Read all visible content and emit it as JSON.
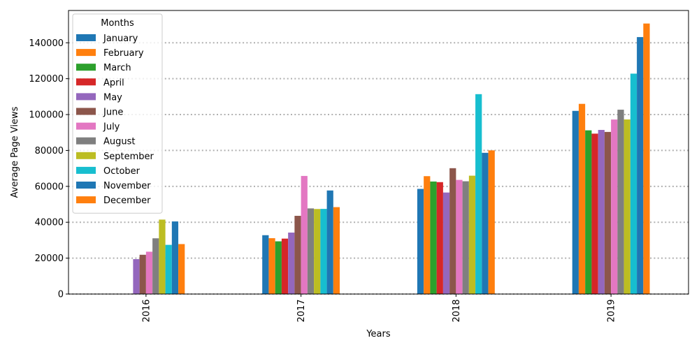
{
  "chart_data": {
    "type": "bar",
    "xlabel": "Years",
    "ylabel": "Average Page Views",
    "categories": [
      "2016",
      "2017",
      "2018",
      "2019"
    ],
    "ylim": [
      0,
      158000
    ],
    "yticks": [
      0,
      20000,
      40000,
      60000,
      80000,
      100000,
      120000,
      140000
    ],
    "grid": "horizontal dotted",
    "legend": {
      "title": "Months",
      "placement": "top-left"
    },
    "series": [
      {
        "name": "January",
        "color": "#1f77b4",
        "values": [
          null,
          32785,
          58580,
          102056
        ]
      },
      {
        "name": "February",
        "color": "#ff7f0e",
        "values": [
          null,
          31113,
          65679,
          105968
        ]
      },
      {
        "name": "March",
        "color": "#2ca02c",
        "values": [
          null,
          29369,
          62693,
          91214
        ]
      },
      {
        "name": "April",
        "color": "#d62728",
        "values": [
          null,
          30878,
          62350,
          89368
        ]
      },
      {
        "name": "May",
        "color": "#9467bd",
        "values": [
          19432,
          34244,
          56562,
          91439
        ]
      },
      {
        "name": "June",
        "color": "#8c564b",
        "values": [
          21875,
          43577,
          70117,
          90324
        ]
      },
      {
        "name": "July",
        "color": "#e377c2",
        "values": [
          23584,
          65806,
          63591,
          97236
        ]
      },
      {
        "name": "August",
        "color": "#7f7f7f",
        "values": [
          31049,
          47712,
          62831,
          102717
        ]
      },
      {
        "name": "September",
        "color": "#bcbd22",
        "values": [
          41476,
          47376,
          65941,
          97268
        ]
      },
      {
        "name": "October",
        "color": "#17becf",
        "values": [
          27398,
          47438,
          111378,
          122802
        ]
      },
      {
        "name": "November",
        "color": "#1f77b4",
        "values": [
          40448,
          57701,
          78688,
          143166
        ]
      },
      {
        "name": "December",
        "color": "#ff7f0e",
        "values": [
          27832,
          48420,
          80047,
          150733
        ]
      }
    ]
  }
}
